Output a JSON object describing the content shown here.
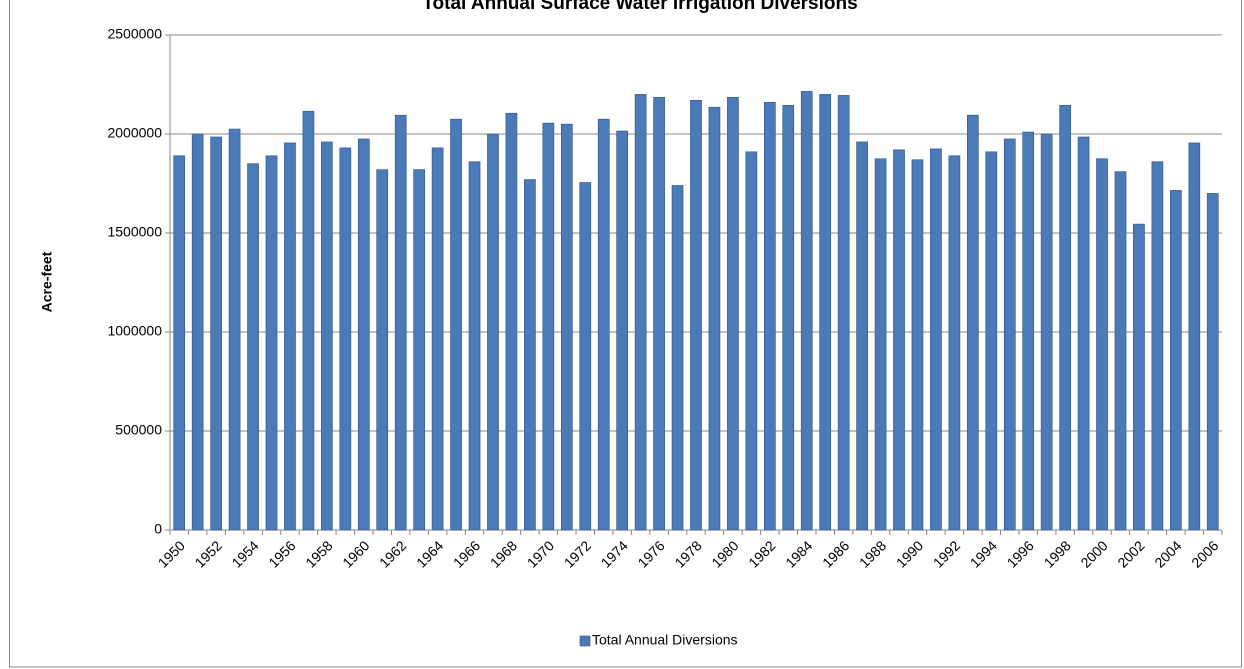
{
  "chart_data": {
    "type": "bar",
    "title": "Total Annual Surface Water Irrigation Diversions",
    "y_label": "Acre-feet",
    "categories": [
      "1950",
      null,
      "1952",
      null,
      "1954",
      null,
      "1956",
      null,
      "1958",
      null,
      "1960",
      null,
      "1962",
      null,
      "1964",
      null,
      "1966",
      null,
      "1968",
      null,
      "1970",
      null,
      "1972",
      null,
      "1974",
      null,
      "1976",
      null,
      "1978",
      null,
      "1980",
      null,
      "1982",
      null,
      "1984",
      null,
      "1986",
      null,
      "1988",
      null,
      "1990",
      null,
      "1992",
      null,
      "1994",
      null,
      "1996",
      null,
      "1998",
      null,
      "2000",
      null,
      "2002",
      null,
      "2004",
      null,
      "2006"
    ],
    "series": [
      {
        "name": "Total Annual Diversions",
        "color": "#4a7ab8",
        "values": [
          1890000,
          2000000,
          1985000,
          2025000,
          1850000,
          1890000,
          1955000,
          2115000,
          1960000,
          1930000,
          1975000,
          1820000,
          2095000,
          1820000,
          1930000,
          2075000,
          1860000,
          2000000,
          2105000,
          1770000,
          2055000,
          2050000,
          1755000,
          2075000,
          2015000,
          2200000,
          2185000,
          1740000,
          2170000,
          2135000,
          2185000,
          1910000,
          2160000,
          2145000,
          2215000,
          2200000,
          2195000,
          1960000,
          1875000,
          1920000,
          1870000,
          1925000,
          1890000,
          2095000,
          1910000,
          1975000,
          2010000,
          2000000,
          2145000,
          1985000,
          1875000,
          1810000,
          1545000,
          1860000,
          1715000,
          1955000,
          1700000
        ]
      }
    ],
    "ylim": [
      0,
      2500000
    ],
    "yticks": [
      0,
      500000,
      1000000,
      1500000,
      2000000,
      2500000
    ],
    "grid": true,
    "legend": "bottom"
  }
}
